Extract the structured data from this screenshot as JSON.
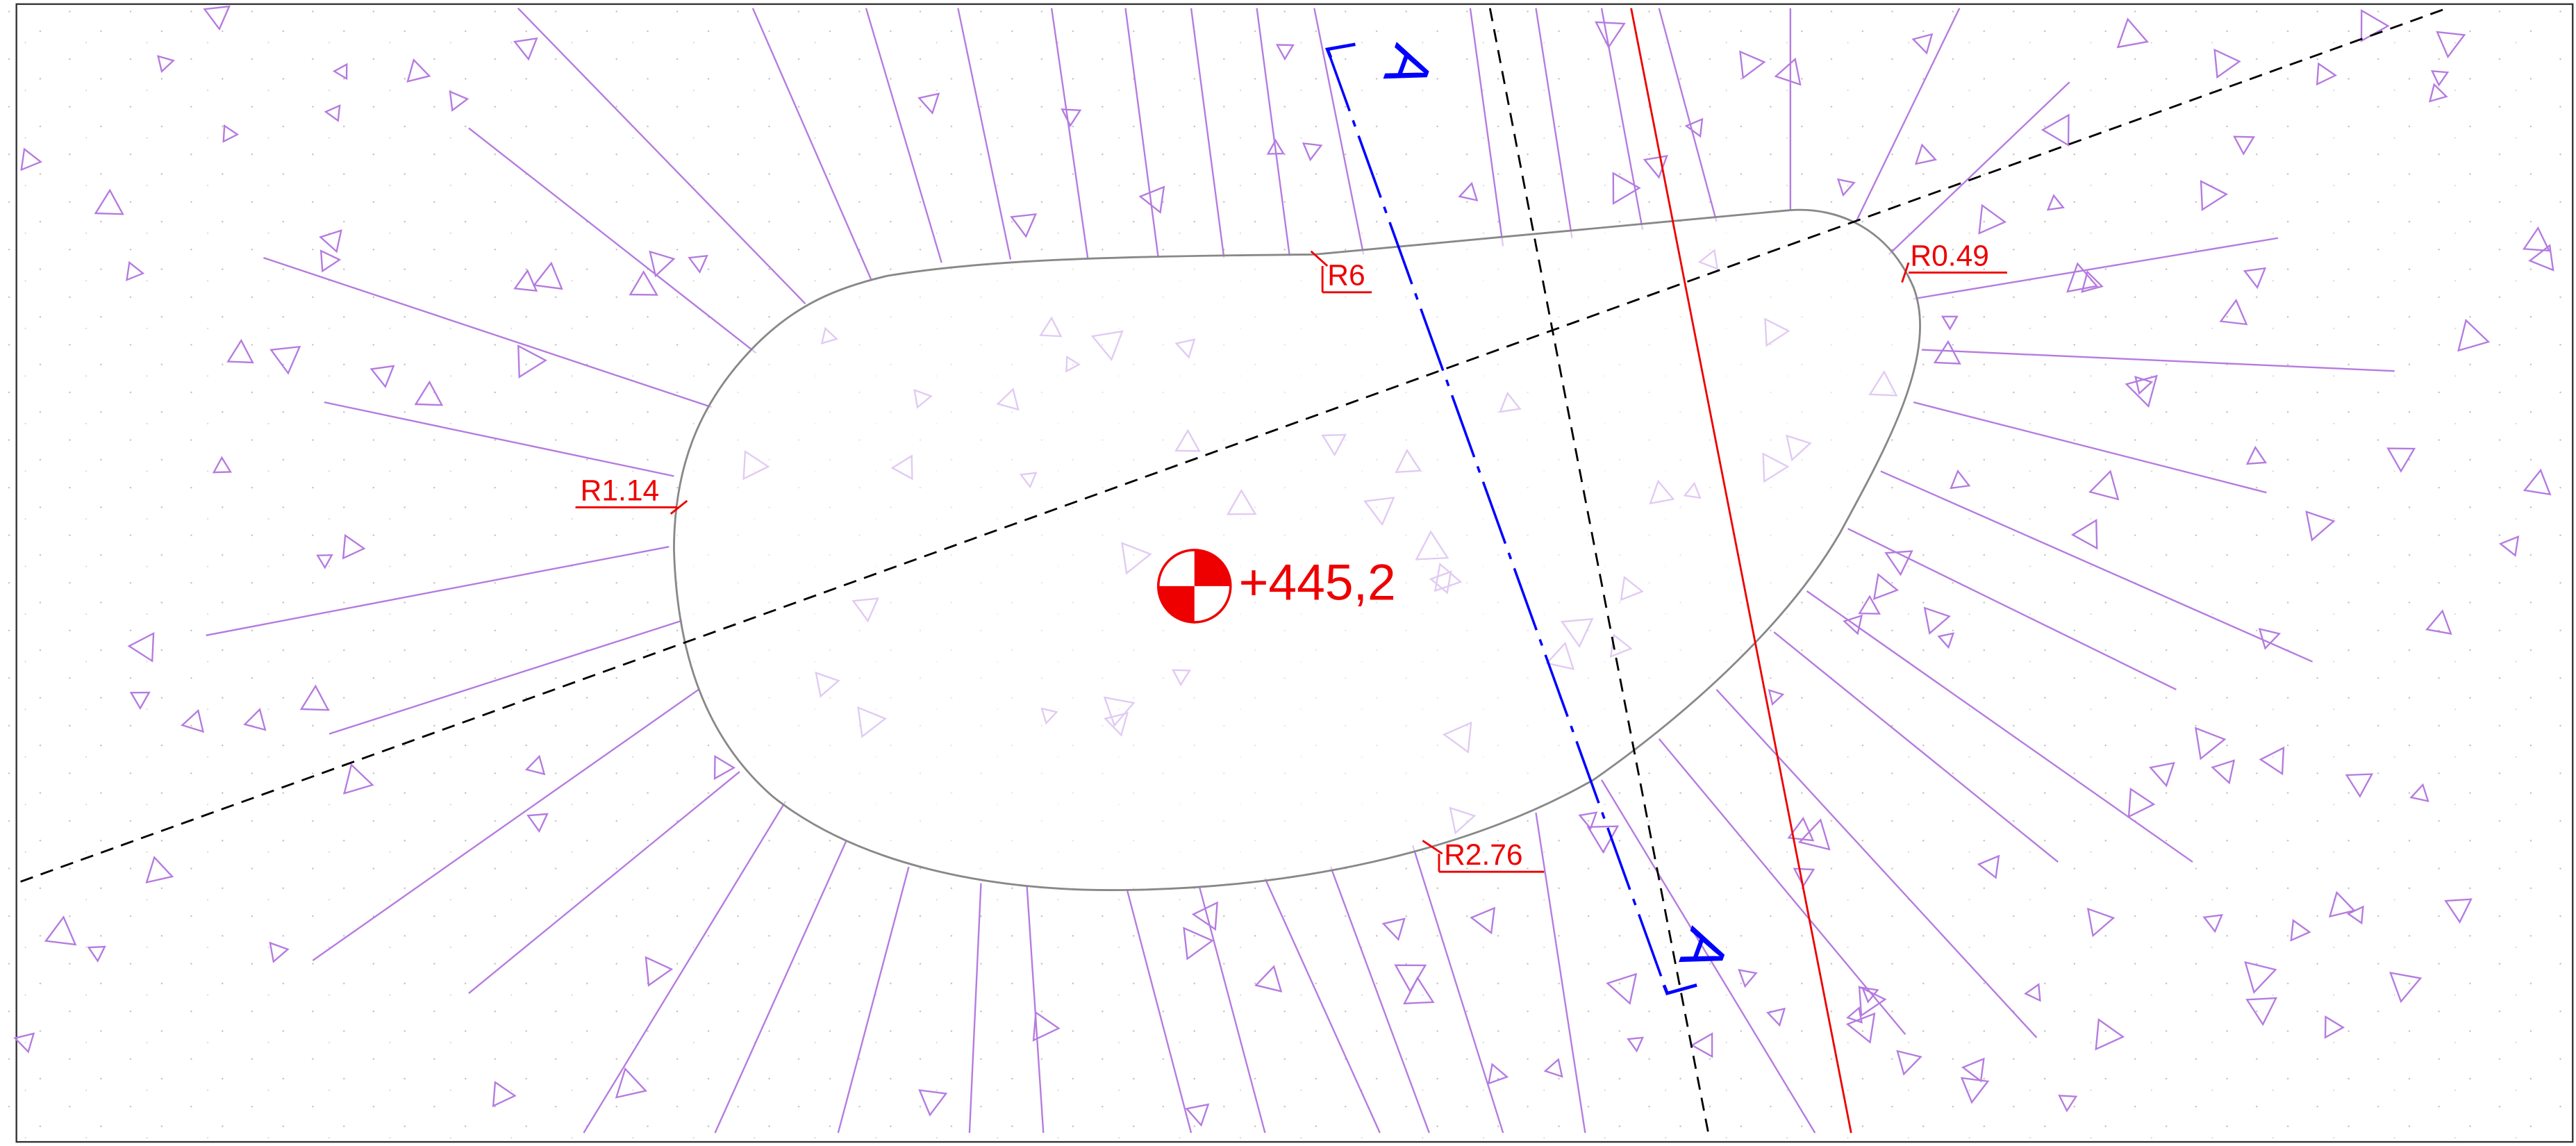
{
  "section_marks": [
    "A",
    "A"
  ],
  "radius_labels": [
    "R6",
    "R0.49",
    "R1.14",
    "R2.76"
  ],
  "elevation": "+445,2"
}
